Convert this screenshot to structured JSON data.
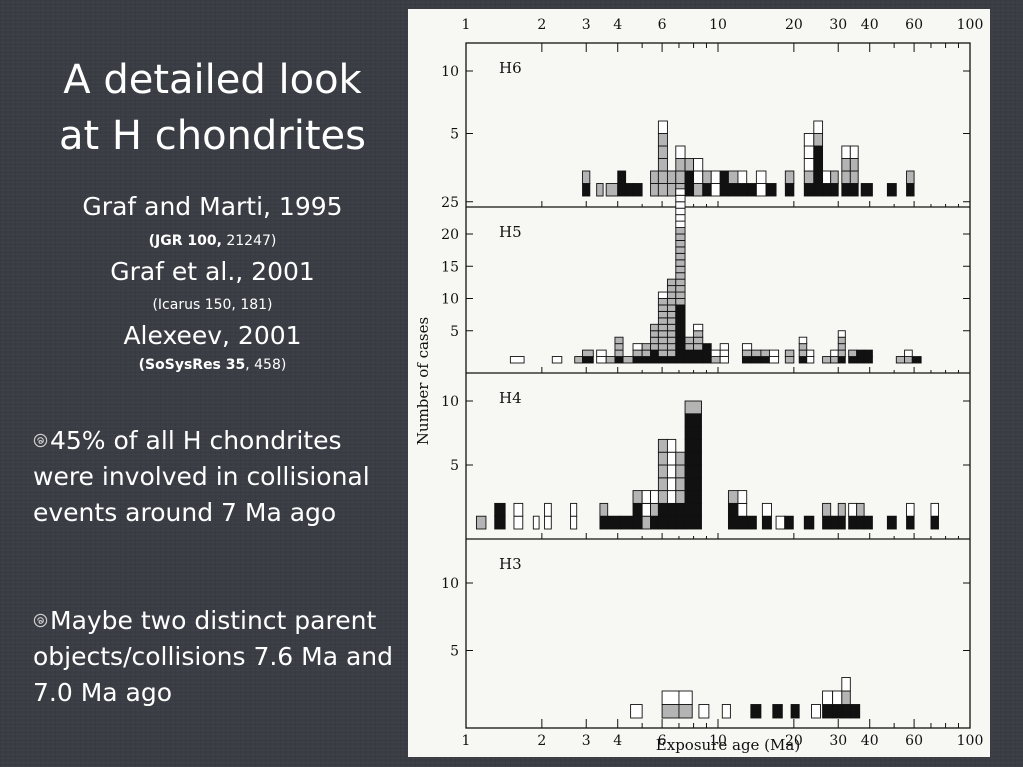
{
  "slide": {
    "title_line1": "A detailed look",
    "title_line2": "at H chondrites",
    "ref1": "Graf and Marti, 1995",
    "ref1_sub_bold": "(JGR 100,",
    "ref1_sub_rest": " 21247)",
    "ref2": "Graf et al., 2001",
    "ref2_sub": "(Icarus 150, 181)",
    "ref3": "Alexeev, 2001",
    "ref3_sub_bold": "(SoSysRes 35",
    "ref3_sub_rest": ", 458)",
    "bullets": [
      "45% of all H chondrites were involved in collisional events around 7 Ma ago",
      "Maybe two distinct parent objects/collisions 7.6 Ma and 7.0 Ma ago"
    ],
    "bullet_icon": "swirl-bullet-icon"
  },
  "chart_data": {
    "type": "bar",
    "xlabel": "Exposure age (Ma)",
    "ylabel": "Number of cases",
    "x_scale": "log",
    "xlim": [
      1,
      100
    ],
    "x_ticks": [
      1,
      2,
      3,
      4,
      6,
      10,
      20,
      30,
      40,
      60,
      100
    ],
    "colors": {
      "black": "#111111",
      "gray": "#b4b4b4",
      "white": "#ffffff"
    },
    "panels": [
      {
        "name": "H6",
        "yticks": [
          5,
          10
        ],
        "bins": [
          {
            "x": [
              2.9,
              3.1
            ],
            "k": 1,
            "g": 1,
            "w": 0
          },
          {
            "x": [
              3.3,
              3.5
            ],
            "k": 0,
            "g": 1,
            "w": 0
          },
          {
            "x": [
              3.6,
              4.0
            ],
            "k": 0,
            "g": 1,
            "w": 0
          },
          {
            "x": [
              4.0,
              4.3
            ],
            "k": 2,
            "g": 0,
            "w": 0
          },
          {
            "x": [
              4.3,
              4.6
            ],
            "k": 1,
            "g": 0,
            "w": 0
          },
          {
            "x": [
              4.6,
              5.0
            ],
            "k": 1,
            "g": 0,
            "w": 0
          },
          {
            "x": [
              5.4,
              5.8
            ],
            "k": 0,
            "g": 2,
            "w": 0
          },
          {
            "x": [
              5.8,
              6.3
            ],
            "k": 0,
            "g": 5,
            "w": 1
          },
          {
            "x": [
              6.3,
              6.8
            ],
            "k": 0,
            "g": 2,
            "w": 0
          },
          {
            "x": [
              6.8,
              7.4
            ],
            "k": 0,
            "g": 3,
            "w": 1
          },
          {
            "x": [
              7.4,
              8.0
            ],
            "k": 2,
            "g": 1,
            "w": 0
          },
          {
            "x": [
              8.0,
              8.7
            ],
            "k": 0,
            "g": 1,
            "w": 2
          },
          {
            "x": [
              8.7,
              9.4
            ],
            "k": 1,
            "g": 1,
            "w": 0
          },
          {
            "x": [
              9.4,
              10.2
            ],
            "k": 0,
            "g": 0,
            "w": 2
          },
          {
            "x": [
              10.2,
              11.0
            ],
            "k": 2,
            "g": 0,
            "w": 0
          },
          {
            "x": [
              11.0,
              12.0
            ],
            "k": 1,
            "g": 1,
            "w": 0
          },
          {
            "x": [
              12.0,
              13.0
            ],
            "k": 1,
            "g": 0,
            "w": 1
          },
          {
            "x": [
              13.0,
              14.2
            ],
            "k": 1,
            "g": 0,
            "w": 0
          },
          {
            "x": [
              14.2,
              15.5
            ],
            "k": 0,
            "g": 0,
            "w": 2
          },
          {
            "x": [
              15.5,
              17.0
            ],
            "k": 1,
            "g": 0,
            "w": 0
          },
          {
            "x": [
              18.5,
              20.0
            ],
            "k": 1,
            "g": 1,
            "w": 0
          },
          {
            "x": [
              22,
              24
            ],
            "k": 1,
            "g": 1,
            "w": 3
          },
          {
            "x": [
              24,
              26
            ],
            "k": 4,
            "g": 1,
            "w": 1
          },
          {
            "x": [
              26,
              28
            ],
            "k": 1,
            "g": 0,
            "w": 1
          },
          {
            "x": [
              28,
              30
            ],
            "k": 1,
            "g": 1,
            "w": 0
          },
          {
            "x": [
              31,
              33.5
            ],
            "k": 1,
            "g": 2,
            "w": 1
          },
          {
            "x": [
              33.5,
              36
            ],
            "k": 1,
            "g": 2,
            "w": 1
          },
          {
            "x": [
              37,
              41
            ],
            "k": 1,
            "g": 0,
            "w": 0
          },
          {
            "x": [
              47,
              51
            ],
            "k": 1,
            "g": 0,
            "w": 0
          },
          {
            "x": [
              56,
              60
            ],
            "k": 1,
            "g": 1,
            "w": 0
          }
        ]
      },
      {
        "name": "H5",
        "yticks": [
          5,
          10,
          15,
          20,
          25
        ],
        "bins": [
          {
            "x": [
              1.5,
              1.7
            ],
            "k": 0,
            "g": 0,
            "w": 1
          },
          {
            "x": [
              2.2,
              2.4
            ],
            "k": 0,
            "g": 0,
            "w": 1
          },
          {
            "x": [
              2.7,
              2.9
            ],
            "k": 0,
            "g": 1,
            "w": 0
          },
          {
            "x": [
              2.9,
              3.2
            ],
            "k": 1,
            "g": 1,
            "w": 0
          },
          {
            "x": [
              3.3,
              3.6
            ],
            "k": 0,
            "g": 0,
            "w": 2
          },
          {
            "x": [
              3.6,
              3.9
            ],
            "k": 0,
            "g": 1,
            "w": 0
          },
          {
            "x": [
              3.9,
              4.2
            ],
            "k": 1,
            "g": 3,
            "w": 0
          },
          {
            "x": [
              4.2,
              4.6
            ],
            "k": 0,
            "g": 1,
            "w": 0
          },
          {
            "x": [
              4.6,
              5.0
            ],
            "k": 1,
            "g": 1,
            "w": 1
          },
          {
            "x": [
              5.0,
              5.4
            ],
            "k": 1,
            "g": 2,
            "w": 0
          },
          {
            "x": [
              5.4,
              5.8
            ],
            "k": 2,
            "g": 4,
            "w": 0
          },
          {
            "x": [
              5.8,
              6.3
            ],
            "k": 1,
            "g": 9,
            "w": 1
          },
          {
            "x": [
              6.3,
              6.8
            ],
            "k": 1,
            "g": 12,
            "w": 0
          },
          {
            "x": [
              6.8,
              7.4
            ],
            "k": 9,
            "g": 12,
            "w": 6
          },
          {
            "x": [
              7.4,
              8.0
            ],
            "k": 2,
            "g": 2,
            "w": 0
          },
          {
            "x": [
              8.0,
              8.7
            ],
            "k": 2,
            "g": 3,
            "w": 1
          },
          {
            "x": [
              8.7,
              9.4
            ],
            "k": 3,
            "g": 0,
            "w": 0
          },
          {
            "x": [
              9.4,
              10.2
            ],
            "k": 0,
            "g": 1,
            "w": 1
          },
          {
            "x": [
              10.2,
              11.0
            ],
            "k": 0,
            "g": 0,
            "w": 3
          },
          {
            "x": [
              12.5,
              13.6
            ],
            "k": 1,
            "g": 1,
            "w": 1
          },
          {
            "x": [
              13.6,
              14.8
            ],
            "k": 1,
            "g": 1,
            "w": 0
          },
          {
            "x": [
              14.8,
              16.0
            ],
            "k": 1,
            "g": 1,
            "w": 0
          },
          {
            "x": [
              16.0,
              17.4
            ],
            "k": 0,
            "g": 0,
            "w": 2
          },
          {
            "x": [
              18.5,
              20.0
            ],
            "k": 0,
            "g": 2,
            "w": 0
          },
          {
            "x": [
              21,
              22.5
            ],
            "k": 1,
            "g": 2,
            "w": 1
          },
          {
            "x": [
              22.5,
              24
            ],
            "k": 0,
            "g": 0,
            "w": 2
          },
          {
            "x": [
              26,
              28
            ],
            "k": 0,
            "g": 1,
            "w": 0
          },
          {
            "x": [
              28,
              30
            ],
            "k": 0,
            "g": 1,
            "w": 1
          },
          {
            "x": [
              30,
              32
            ],
            "k": 1,
            "g": 3,
            "w": 1
          },
          {
            "x": [
              33,
              35.5
            ],
            "k": 1,
            "g": 1,
            "w": 0
          },
          {
            "x": [
              35.5,
              38
            ],
            "k": 2,
            "g": 0,
            "w": 0
          },
          {
            "x": [
              38,
              41
            ],
            "k": 2,
            "g": 0,
            "w": 0
          },
          {
            "x": [
              51,
              55
            ],
            "k": 0,
            "g": 1,
            "w": 0
          },
          {
            "x": [
              55,
              59
            ],
            "k": 0,
            "g": 1,
            "w": 1
          },
          {
            "x": [
              59,
              64
            ],
            "k": 1,
            "g": 0,
            "w": 0
          }
        ]
      },
      {
        "name": "H4",
        "yticks": [
          5,
          10
        ],
        "bins": [
          {
            "x": [
              1.1,
              1.2
            ],
            "k": 0,
            "g": 1,
            "w": 0
          },
          {
            "x": [
              1.3,
              1.43
            ],
            "k": 2,
            "g": 0,
            "w": 0
          },
          {
            "x": [
              1.55,
              1.68
            ],
            "k": 0,
            "g": 0,
            "w": 2
          },
          {
            "x": [
              1.85,
              1.95
            ],
            "k": 0,
            "g": 0,
            "w": 1
          },
          {
            "x": [
              2.05,
              2.18
            ],
            "k": 0,
            "g": 0,
            "w": 2
          },
          {
            "x": [
              2.6,
              2.75
            ],
            "k": 0,
            "g": 0,
            "w": 2
          },
          {
            "x": [
              3.4,
              3.65
            ],
            "k": 1,
            "g": 1,
            "w": 0
          },
          {
            "x": [
              3.65,
              4.1
            ],
            "k": 1,
            "g": 0,
            "w": 0
          },
          {
            "x": [
              4.1,
              4.6
            ],
            "k": 1,
            "g": 0,
            "w": 0
          },
          {
            "x": [
              4.6,
              5.0
            ],
            "k": 2,
            "g": 1,
            "w": 0
          },
          {
            "x": [
              5.0,
              5.4
            ],
            "k": 0,
            "g": 1,
            "w": 2
          },
          {
            "x": [
              5.4,
              5.8
            ],
            "k": 1,
            "g": 1,
            "w": 1
          },
          {
            "x": [
              5.8,
              6.3
            ],
            "k": 2,
            "g": 5,
            "w": 0
          },
          {
            "x": [
              6.3,
              6.8
            ],
            "k": 2,
            "g": 0,
            "w": 5
          },
          {
            "x": [
              6.8,
              7.4
            ],
            "k": 2,
            "g": 4,
            "w": 0
          },
          {
            "x": [
              7.4,
              8.6
            ],
            "k": 9,
            "g": 1,
            "w": 0
          },
          {
            "x": [
              11.0,
              12.0
            ],
            "k": 2,
            "g": 1,
            "w": 0
          },
          {
            "x": [
              12.0,
              13.0
            ],
            "k": 1,
            "g": 0,
            "w": 2
          },
          {
            "x": [
              13.0,
              14.2
            ],
            "k": 1,
            "g": 0,
            "w": 0
          },
          {
            "x": [
              15.0,
              16.3
            ],
            "k": 1,
            "g": 0,
            "w": 1
          },
          {
            "x": [
              17.0,
              18.4
            ],
            "k": 0,
            "g": 0,
            "w": 1
          },
          {
            "x": [
              18.4,
              19.9
            ],
            "k": 1,
            "g": 0,
            "w": 0
          },
          {
            "x": [
              22,
              24
            ],
            "k": 1,
            "g": 0,
            "w": 0
          },
          {
            "x": [
              26,
              28
            ],
            "k": 1,
            "g": 1,
            "w": 0
          },
          {
            "x": [
              28,
              30
            ],
            "k": 1,
            "g": 0,
            "w": 0
          },
          {
            "x": [
              30,
              32
            ],
            "k": 1,
            "g": 1,
            "w": 0
          },
          {
            "x": [
              33,
              35.5
            ],
            "k": 1,
            "g": 0,
            "w": 1
          },
          {
            "x": [
              35.5,
              38
            ],
            "k": 1,
            "g": 1,
            "w": 0
          },
          {
            "x": [
              38,
              41
            ],
            "k": 1,
            "g": 0,
            "w": 0
          },
          {
            "x": [
              47,
              51
            ],
            "k": 1,
            "g": 0,
            "w": 0
          },
          {
            "x": [
              56,
              60
            ],
            "k": 1,
            "g": 0,
            "w": 1
          },
          {
            "x": [
              70,
              75
            ],
            "k": 1,
            "g": 0,
            "w": 1
          }
        ]
      },
      {
        "name": "H3",
        "yticks": [
          5,
          10
        ],
        "bins": [
          {
            "x": [
              4.5,
              5.0
            ],
            "k": 0,
            "g": 0,
            "w": 1
          },
          {
            "x": [
              6.0,
              7.0
            ],
            "k": 0,
            "g": 1,
            "w": 1
          },
          {
            "x": [
              7.0,
              7.9
            ],
            "k": 0,
            "g": 1,
            "w": 1
          },
          {
            "x": [
              8.4,
              9.2
            ],
            "k": 0,
            "g": 0,
            "w": 1
          },
          {
            "x": [
              10.4,
              11.2
            ],
            "k": 0,
            "g": 0,
            "w": 1
          },
          {
            "x": [
              13.5,
              14.8
            ],
            "k": 1,
            "g": 0,
            "w": 0
          },
          {
            "x": [
              16.5,
              18.0
            ],
            "k": 1,
            "g": 0,
            "w": 0
          },
          {
            "x": [
              19.5,
              21.0
            ],
            "k": 1,
            "g": 0,
            "w": 0
          },
          {
            "x": [
              23.5,
              25.5
            ],
            "k": 0,
            "g": 0,
            "w": 1
          },
          {
            "x": [
              26,
              28.5
            ],
            "k": 1,
            "g": 0,
            "w": 1
          },
          {
            "x": [
              28.5,
              31
            ],
            "k": 1,
            "g": 0,
            "w": 1
          },
          {
            "x": [
              31,
              33.5
            ],
            "k": 1,
            "g": 1,
            "w": 1
          },
          {
            "x": [
              33.5,
              36.5
            ],
            "k": 1,
            "g": 0,
            "w": 0
          }
        ]
      }
    ]
  }
}
